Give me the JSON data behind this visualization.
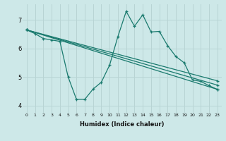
{
  "title": "",
  "xlabel": "Humidex (Indice chaleur)",
  "bg_color": "#cde8e8",
  "grid_color": "#b8d4d4",
  "line_color": "#1a7a6e",
  "xlim": [
    -0.5,
    23.5
  ],
  "ylim": [
    3.75,
    7.55
  ],
  "xticks": [
    0,
    1,
    2,
    3,
    4,
    5,
    6,
    7,
    8,
    9,
    10,
    11,
    12,
    13,
    14,
    15,
    16,
    17,
    18,
    19,
    20,
    21,
    22,
    23
  ],
  "yticks": [
    4,
    5,
    6,
    7
  ],
  "lines": [
    {
      "x": [
        0,
        1,
        2,
        3,
        4,
        5,
        6,
        7,
        8,
        9,
        10,
        11,
        12,
        13,
        14,
        15,
        16,
        17,
        18,
        19,
        20,
        21,
        22,
        23
      ],
      "y": [
        6.65,
        6.52,
        6.35,
        6.3,
        6.25,
        5.0,
        4.22,
        4.22,
        4.58,
        4.82,
        5.42,
        6.42,
        7.3,
        6.78,
        7.18,
        6.58,
        6.6,
        6.1,
        5.72,
        5.5,
        4.9,
        4.85,
        4.7,
        4.57
      ]
    },
    {
      "x": [
        0,
        23
      ],
      "y": [
        6.65,
        4.57
      ]
    },
    {
      "x": [
        0,
        23
      ],
      "y": [
        6.65,
        4.72
      ]
    },
    {
      "x": [
        0,
        23
      ],
      "y": [
        6.65,
        4.87
      ]
    }
  ],
  "marker": "+",
  "markersize": 3.5,
  "linewidth": 0.9,
  "xlabel_fontsize": 6,
  "xlabel_fontweight": "bold",
  "xtick_fontsize": 4.5,
  "ytick_fontsize": 6
}
